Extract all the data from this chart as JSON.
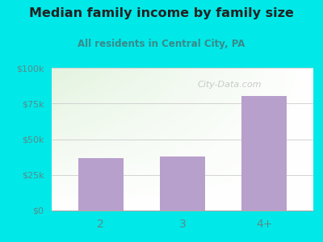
{
  "title": "Median family income by family size",
  "subtitle": "All residents in Central City, PA",
  "categories": [
    "2",
    "3",
    "4+"
  ],
  "values": [
    37000,
    38000,
    80000
  ],
  "bar_color": "#b8a0cc",
  "background_color": "#00e8e8",
  "plot_bg_topleft": "#c8e8c0",
  "plot_bg_bottomright": "#ffffff",
  "title_color": "#222222",
  "subtitle_color": "#3a8a8a",
  "tick_color": "#5a8a8a",
  "ylim": [
    0,
    100000
  ],
  "yticks": [
    0,
    25000,
    50000,
    75000,
    100000
  ],
  "ytick_labels": [
    "$0",
    "$25k",
    "$50k",
    "$75k",
    "$100k"
  ],
  "watermark": "City-Data.com",
  "title_fontsize": 11.5,
  "subtitle_fontsize": 8.5
}
